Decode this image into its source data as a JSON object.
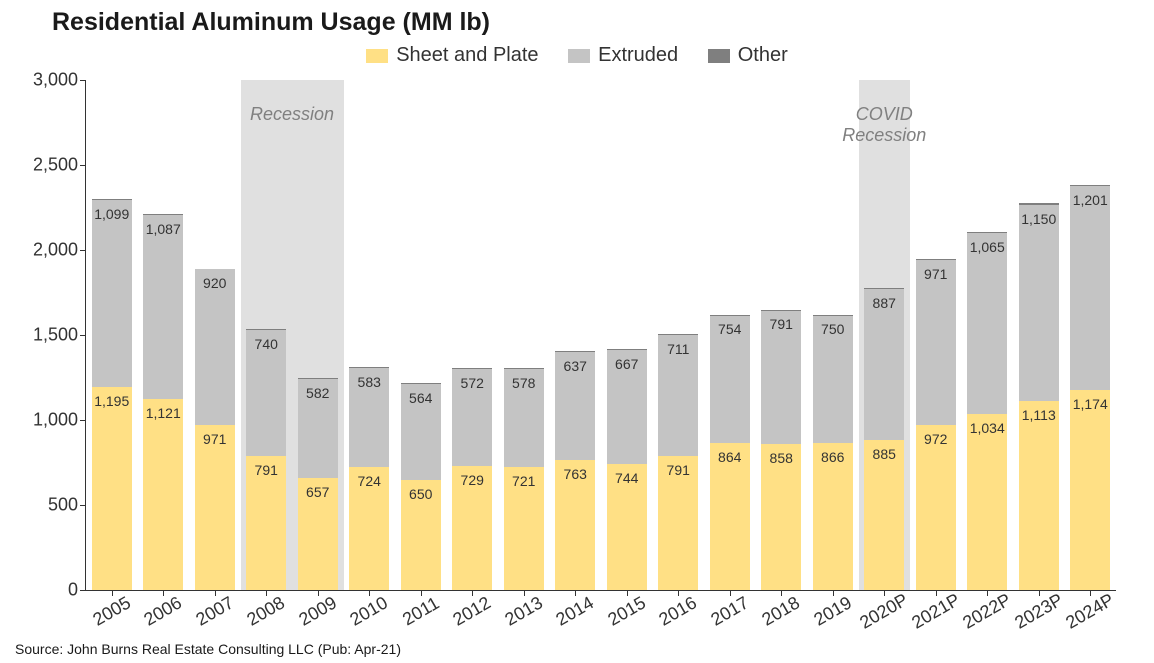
{
  "chart": {
    "type": "bar",
    "title": "Residential Aluminum Usage (MM lb)",
    "source": "Source: John Burns Real Estate Consulting LLC (Pub: Apr-21)",
    "title_fontsize": 25,
    "axis_fontsize": 18,
    "value_label_fontsize": 14,
    "legend_fontsize": 20,
    "background_color": "#ffffff",
    "ylim": [
      0,
      3000
    ],
    "ytick_step": 500,
    "yticks": [
      0,
      500,
      1000,
      1500,
      2000,
      2500,
      3000
    ],
    "ytick_labels": [
      "0",
      "500",
      "1,000",
      "1,500",
      "2,000",
      "2,500",
      "3,000"
    ],
    "categories": [
      "2005",
      "2006",
      "2007",
      "2008",
      "2009",
      "2010",
      "2011",
      "2012",
      "2013",
      "2014",
      "2015",
      "2016",
      "2017",
      "2018",
      "2019",
      "2020P",
      "2021P",
      "2022P",
      "2023P",
      "2024P"
    ],
    "series": [
      {
        "name": "Sheet and Plate",
        "color": "#ffe085",
        "values": [
          1195,
          1121,
          971,
          791,
          657,
          724,
          650,
          729,
          721,
          763,
          744,
          791,
          864,
          858,
          866,
          885,
          972,
          1034,
          1113,
          1174
        ],
        "labels": [
          "1,195",
          "1,121",
          "971",
          "791",
          "657",
          "724",
          "650",
          "729",
          "721",
          "763",
          "744",
          "791",
          "864",
          "858",
          "866",
          "885",
          "972",
          "1,034",
          "1,113",
          "1,174"
        ]
      },
      {
        "name": "Extruded",
        "color": "#c4c4c4",
        "values": [
          1099,
          1087,
          920,
          740,
          582,
          583,
          564,
          572,
          578,
          637,
          667,
          711,
          754,
          791,
          750,
          887,
          971,
          1065,
          1150,
          1201
        ],
        "labels": [
          "1,099",
          "1,087",
          "920",
          "740",
          "582",
          "583",
          "564",
          "572",
          "578",
          "637",
          "667",
          "711",
          "754",
          "791",
          "750",
          "887",
          "971",
          "1,065",
          "1,150",
          "1,201"
        ]
      },
      {
        "name": "Other",
        "color": "#7f7f7f",
        "totals": [
          2300,
          2210,
          1890,
          1535,
          1245,
          1310,
          1220,
          1305,
          1305,
          1405,
          1415,
          1505,
          1620,
          1650,
          1620,
          1775,
          1950,
          2105,
          2275,
          2385
        ]
      }
    ],
    "recessions": [
      {
        "label": "Recession",
        "start_index": 3,
        "end_index": 4,
        "color": "#e0e0e0"
      },
      {
        "label": "COVID\nRecession",
        "start_index": 15,
        "end_index": 15,
        "color": "#e0e0e0"
      }
    ],
    "bar_width_ratio": 0.78
  }
}
